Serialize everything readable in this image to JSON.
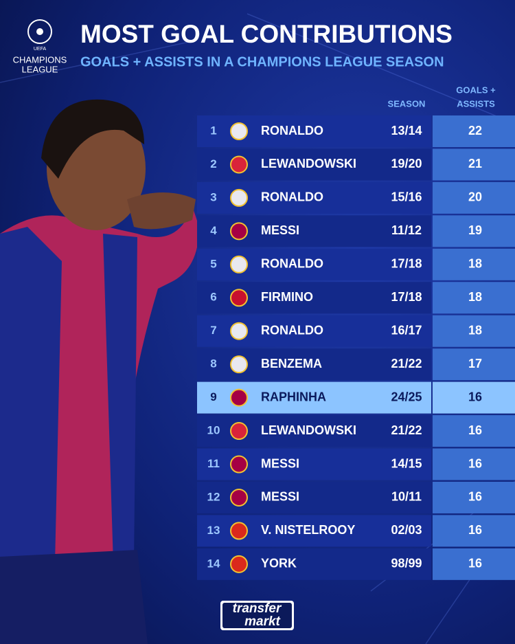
{
  "header": {
    "logo": [
      "UEFA",
      "CHAMPIONS",
      "LEAGUE"
    ],
    "title": "MOST GOAL CONTRIBUTIONS",
    "subtitle": "GOALS + ASSISTS IN A CHAMPIONS LEAGUE SEASON"
  },
  "table": {
    "columns": {
      "season": "SEASON",
      "total": [
        "GOALS +",
        "ASSISTS"
      ]
    },
    "rows": [
      [
        1,
        "RONALDO",
        "13/14",
        22
      ],
      [
        2,
        "LEWANDOWSKI",
        "19/20",
        21
      ],
      [
        3,
        "RONALDO",
        "15/16",
        20
      ],
      [
        4,
        "MESSI",
        "11/12",
        19
      ],
      [
        5,
        "RONALDO",
        "17/18",
        18
      ],
      [
        6,
        "FIRMINO",
        "17/18",
        18
      ],
      [
        7,
        "RONALDO",
        "16/17",
        18
      ],
      [
        8,
        "BENZEMA",
        "21/22",
        17
      ],
      [
        9,
        "RAPHINHA",
        "24/25",
        16
      ],
      [
        10,
        "LEWANDOWSKI",
        "21/22",
        16
      ],
      [
        11,
        "MESSI",
        "14/15",
        16
      ],
      [
        12,
        "MESSI",
        "10/11",
        16
      ],
      [
        13,
        "V. NISTELROOY",
        "02/03",
        16
      ],
      [
        14,
        "YORK",
        "98/99",
        16
      ]
    ]
  },
  "footer": {
    "brand": [
      "transfer",
      "markt"
    ]
  }
}
